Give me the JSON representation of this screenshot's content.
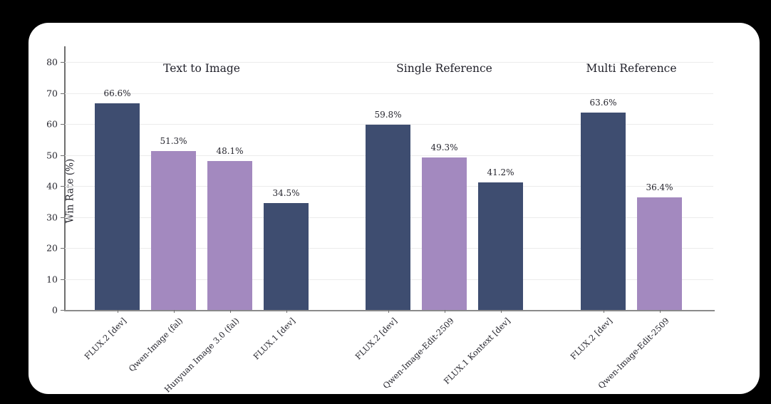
{
  "page": {
    "outer_background": "#000000",
    "card_background": "#ffffff"
  },
  "chart_data": {
    "type": "bar",
    "ylabel": "Win Rate (%)",
    "ylim": [
      0,
      80
    ],
    "yticks": [
      0,
      10,
      20,
      30,
      40,
      50,
      60,
      70,
      80
    ],
    "grid": true,
    "legend": "none",
    "colors": {
      "flux_navy": "#3e4d70",
      "competitor_purple": "#a389bf"
    },
    "groups": [
      {
        "title": "Text to Image",
        "bars": [
          {
            "label": "FLUX.2 [dev]",
            "value": 66.6,
            "display": "66.6%",
            "color": "#3e4d70"
          },
          {
            "label": "Qwen-Image (fal)",
            "value": 51.3,
            "display": "51.3%",
            "color": "#a389bf"
          },
          {
            "label": "Hunyuan Image 3.0 (fal)",
            "value": 48.1,
            "display": "48.1%",
            "color": "#a389bf"
          },
          {
            "label": "FLUX.1 [dev]",
            "value": 34.5,
            "display": "34.5%",
            "color": "#3e4d70"
          }
        ]
      },
      {
        "title": "Single Reference",
        "bars": [
          {
            "label": "FLUX.2 [dev]",
            "value": 59.8,
            "display": "59.8%",
            "color": "#3e4d70"
          },
          {
            "label": "Qwen-Image-Edit-2509",
            "value": 49.3,
            "display": "49.3%",
            "color": "#a389bf"
          },
          {
            "label": "FLUX.1 Kontext [dev]",
            "value": 41.2,
            "display": "41.2%",
            "color": "#3e4d70"
          }
        ]
      },
      {
        "title": "Multi Reference",
        "bars": [
          {
            "label": "FLUX.2 [dev]",
            "value": 63.6,
            "display": "63.6%",
            "color": "#3e4d70"
          },
          {
            "label": "Qwen-Image-Edit-2509",
            "value": 36.4,
            "display": "36.4%",
            "color": "#a389bf"
          }
        ]
      }
    ]
  }
}
